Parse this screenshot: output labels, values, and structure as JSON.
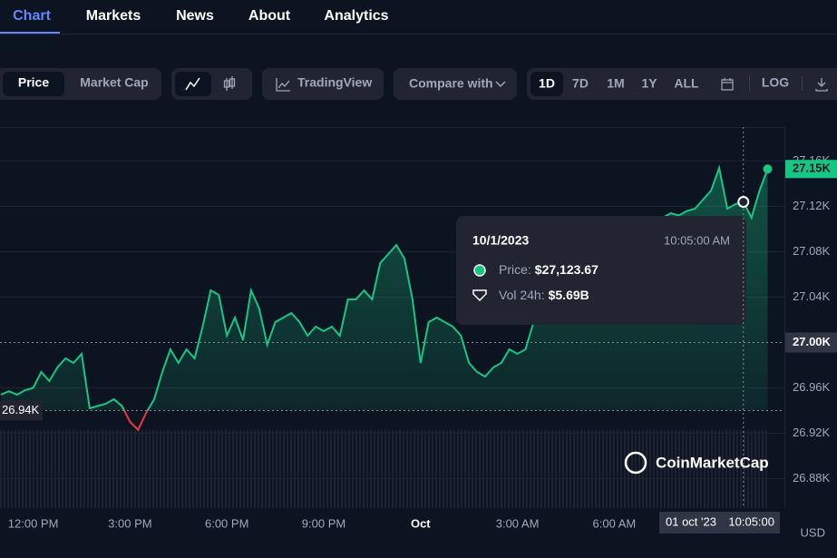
{
  "nav": [
    "Chart",
    "Markets",
    "News",
    "About",
    "Analytics"
  ],
  "toolbar": {
    "price": "Price",
    "market_cap": "Market Cap",
    "tradingview": "TradingView",
    "compare": "Compare with",
    "ranges": [
      "1D",
      "7D",
      "1M",
      "1Y",
      "ALL"
    ],
    "log": "LOG"
  },
  "chart_data": {
    "type": "line",
    "categories": [
      null,
      null,
      null,
      null,
      "12:00 PM",
      null,
      null,
      null,
      null,
      null,
      null,
      null,
      null,
      null,
      null,
      null,
      "3:00 PM",
      null,
      null,
      null,
      null,
      null,
      null,
      null,
      null,
      null,
      null,
      null,
      "6:00 PM",
      null,
      null,
      null,
      null,
      null,
      null,
      null,
      null,
      null,
      null,
      null,
      "9:00 PM",
      null,
      null,
      null,
      null,
      null,
      null,
      null,
      null,
      null,
      null,
      null,
      "Oct",
      null,
      null,
      null,
      null,
      null,
      null,
      null,
      null,
      null,
      null,
      null,
      "3:00 AM",
      null,
      null,
      null,
      null,
      null,
      null,
      null,
      null,
      null,
      null,
      null,
      "6:00 AM",
      null,
      null,
      null,
      null,
      null,
      null,
      null,
      null,
      null,
      null,
      null,
      null,
      null,
      null,
      null,
      null,
      null,
      null,
      null
    ],
    "values": [
      26954,
      26957,
      26954,
      26958,
      26960,
      26974,
      26966,
      26978,
      26986,
      26982,
      26990,
      26942,
      26944,
      26946,
      26950,
      26944,
      26930,
      26923,
      26938,
      26950,
      26974,
      26994,
      26982,
      26994,
      26986,
      27014,
      27046,
      27042,
      27006,
      27022,
      27002,
      27046,
      27030,
      26998,
      27018,
      27022,
      27026,
      27018,
      27006,
      27014,
      27010,
      27014,
      27006,
      27038,
      27038,
      27046,
      27038,
      27070,
      27078,
      27086,
      27074,
      27038,
      26982,
      27018,
      27022,
      27018,
      27014,
      27006,
      26982,
      26974,
      26970,
      26978,
      26982,
      26994,
      26990,
      26994,
      27018,
      27046,
      27050,
      27058,
      27062,
      27066,
      27070,
      27074,
      27078,
      27082,
      27086,
      27090,
      27094,
      27098,
      27102,
      27106,
      27110,
      27114,
      27112,
      27116,
      27118,
      27126,
      27134,
      27154,
      27118,
      27122,
      27124,
      27110,
      27134,
      27153
    ],
    "color": "#16c784",
    "down_color": "#ea3943",
    "ylim": [
      26854,
      27190
    ],
    "yticks": [
      {
        "value": 26880,
        "label": "26.88K"
      },
      {
        "value": 26920,
        "label": "26.92K"
      },
      {
        "value": 26960,
        "label": "26.96K"
      },
      {
        "value": 27000,
        "label": "27.00K"
      },
      {
        "value": 27040,
        "label": "27.04K"
      },
      {
        "value": 27080,
        "label": "27.08K"
      },
      {
        "value": 27120,
        "label": "27.12K"
      },
      {
        "value": 27160,
        "label": "27.16K"
      }
    ],
    "grid": true,
    "reference": {
      "value": 26940,
      "label": "26.94K"
    },
    "current": {
      "value": 27153,
      "label": "27.15K"
    },
    "crosshair_tick": 3,
    "crosshair_index": 92,
    "crosshair_date": "01 oct '23",
    "crosshair_time": "10:05:00",
    "currency": "USD",
    "watermark": "CoinMarketCap"
  },
  "tooltip": {
    "date": "10/1/2023",
    "time": "10:05:00 AM",
    "rows": [
      {
        "label": "Price:",
        "value": "$27,123.67"
      },
      {
        "label": "Vol 24h:",
        "value": "$5.69B"
      }
    ]
  }
}
